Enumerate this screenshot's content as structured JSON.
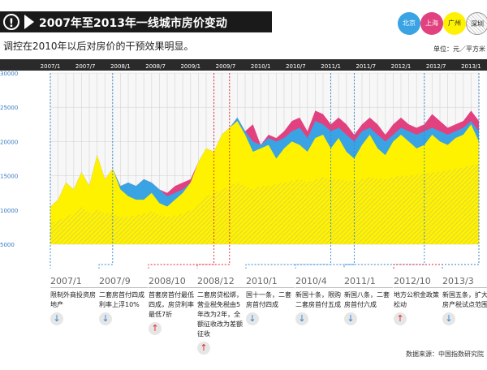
{
  "header": {
    "title": "2007年至2013年一线城市房价变动"
  },
  "subtitle": "调控在2010年以后对房价的干预效果明显。",
  "unit_label": "单位：元／平方米",
  "source": "数据来源：中国指数研究院",
  "colors": {
    "beijing": "#3aa3e3",
    "shanghai": "#e2417f",
    "guangzhou": "#fff200",
    "shenzhen": "#e8e59a",
    "up": "#e0262f",
    "down": "#2e86d6"
  },
  "chart_data": {
    "type": "area",
    "x_ticks": [
      "2007/1",
      "2007/7",
      "2008/1",
      "2008/7",
      "2009/1",
      "2009/7",
      "2010/1",
      "2010/7",
      "2011/1",
      "2011/7",
      "2012/1",
      "2012/7",
      "2013/1"
    ],
    "y_ticks": [
      5000,
      10000,
      15000,
      20000,
      25000,
      30000
    ],
    "ylim": [
      5000,
      30000
    ],
    "legend": [
      "北京",
      "上海",
      "广州",
      "深圳"
    ],
    "series": [
      {
        "name": "广州",
        "values": [
          10500,
          11500,
          14000,
          13000,
          15500,
          13500,
          18000,
          14500,
          16000,
          13000,
          12000,
          11500,
          11500,
          12500,
          11000,
          10500,
          11500,
          12500,
          14000,
          17000,
          19000,
          18500,
          21000,
          22000,
          23000,
          21000,
          18500,
          19000,
          19500,
          17500,
          19000,
          20000,
          19500,
          18500,
          20500,
          21000,
          19000,
          20500,
          18500,
          17500,
          19500,
          21000,
          19000,
          18000,
          20000,
          21000,
          20000,
          19000,
          19500,
          21000,
          20000,
          19500,
          20500,
          21000,
          22500,
          20000
        ]
      },
      {
        "name": "北京",
        "values": [
          10500,
          11500,
          14000,
          13000,
          15500,
          13500,
          18000,
          14500,
          16000,
          13500,
          14000,
          13500,
          14500,
          14000,
          13000,
          12000,
          12500,
          13000,
          14000,
          17000,
          19000,
          18500,
          21000,
          22000,
          23500,
          21500,
          20000,
          19500,
          20500,
          20000,
          20500,
          21500,
          22000,
          20500,
          23000,
          22500,
          21500,
          22000,
          21000,
          20000,
          21500,
          22000,
          21000,
          20000,
          21000,
          22000,
          21500,
          21000,
          21500,
          22000,
          21500,
          21000,
          21500,
          22000,
          23000,
          21500
        ]
      },
      {
        "name": "上海",
        "values": [
          10500,
          11500,
          14000,
          13000,
          15500,
          13500,
          18000,
          14500,
          16000,
          13500,
          14000,
          13500,
          14500,
          14000,
          13000,
          12500,
          13500,
          14000,
          14500,
          17000,
          19000,
          18500,
          21000,
          22000,
          23500,
          21500,
          22500,
          19500,
          21000,
          20500,
          21500,
          23000,
          23500,
          21500,
          24500,
          24000,
          22500,
          23500,
          22500,
          21000,
          22500,
          23500,
          22500,
          21000,
          22500,
          23500,
          22500,
          22000,
          22500,
          24000,
          23000,
          22000,
          22500,
          23000,
          24500,
          23000
        ]
      },
      {
        "name": "深圳",
        "values": [
          8000,
          8500,
          9000,
          9500,
          10500,
          9500,
          10000,
          9500,
          9500,
          9000,
          9000,
          9200,
          9500,
          9800,
          9300,
          9000,
          9200,
          9500,
          10000,
          11000,
          12000,
          12500,
          13000,
          13500,
          14000,
          13500,
          13000,
          13500,
          13500,
          13800,
          14000,
          14200,
          14500,
          14000,
          14500,
          14800,
          14500,
          14500,
          14300,
          14200,
          14500,
          14800,
          14600,
          14500,
          14800,
          15000,
          15000,
          15200,
          15300,
          15500,
          15600,
          15800,
          16000,
          16200,
          16500,
          16800
        ]
      }
    ],
    "annotations": [
      {
        "date": "2007/1",
        "text": "限制外商投资房地产",
        "direction": "down"
      },
      {
        "date": "2007/9",
        "text": "二套房首付四成利率上浮10%",
        "direction": "down"
      },
      {
        "date": "2008/10",
        "text": "首套房首付最低四成，房贷利率最低7折",
        "direction": "up"
      },
      {
        "date": "2008/12",
        "text": "二套房贷松绑，营业税免税由5年改为2年，全额征收改为差额征收",
        "direction": "up"
      },
      {
        "date": "2010/1",
        "text": "国十一条，二套房首付四成",
        "direction": "down"
      },
      {
        "date": "2010/4",
        "text": "新国十条，限购二套房首付五成",
        "direction": "down"
      },
      {
        "date": "2011/1",
        "text": "新国八条，二套房首付六成",
        "direction": "down"
      },
      {
        "date": "2012/10",
        "text": "地方公积金政策松动",
        "direction": "up"
      },
      {
        "date": "2013/3",
        "text": "新国五条，扩大房产税试点范围",
        "direction": "down"
      }
    ]
  }
}
